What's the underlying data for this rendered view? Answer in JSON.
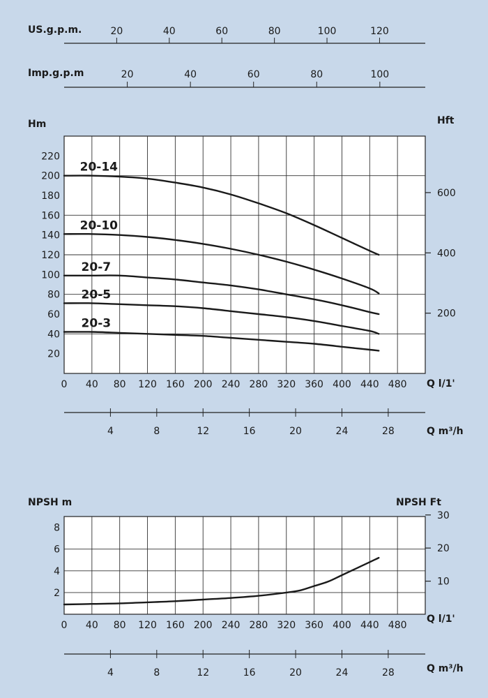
{
  "colors": {
    "background": "#c8d8ea",
    "plot_bg": "#ffffff",
    "grid": "#333333",
    "curve": "#1a1a1a"
  },
  "top_scales": {
    "us_gpm": {
      "label": "US.g.p.m.",
      "ticks": [
        "20",
        "40",
        "60",
        "80",
        "100",
        "120"
      ],
      "values": [
        20,
        40,
        60,
        80,
        100,
        120
      ]
    },
    "imp_gpm": {
      "label": "Imp.g.p.m",
      "ticks": [
        "20",
        "40",
        "60",
        "80",
        "100"
      ],
      "values": [
        20,
        40,
        60,
        80,
        100
      ]
    }
  },
  "chart_data": [
    {
      "type": "line",
      "title": "",
      "ylabel": "Hm",
      "ylabel_right": "Hft",
      "xlabel": "Q l/1'",
      "xlabel_secondary": "Q m³/h",
      "x_ticks": [
        "0",
        "40",
        "80",
        "120",
        "160",
        "200",
        "240",
        "280",
        "320",
        "360",
        "400",
        "440",
        "480"
      ],
      "x_ticks_secondary": [
        "4",
        "8",
        "12",
        "16",
        "20",
        "24",
        "28"
      ],
      "y_ticks": [
        "20",
        "40",
        "60",
        "80",
        "100",
        "120",
        "140",
        "160",
        "180",
        "200",
        "220"
      ],
      "y_ticks_right": [
        "200",
        "400",
        "600"
      ],
      "xlim": [
        0,
        520
      ],
      "ylim": [
        0,
        240
      ],
      "grid": true,
      "x": [
        0,
        40,
        80,
        120,
        160,
        200,
        240,
        280,
        320,
        360,
        400,
        440,
        453
      ],
      "series": [
        {
          "name": "20-14",
          "values": [
            200,
            200,
            199,
            197,
            193,
            188,
            181,
            172,
            162,
            150,
            137,
            124,
            120
          ]
        },
        {
          "name": "20-10",
          "values": [
            141,
            141,
            140,
            138,
            135,
            131,
            126,
            120,
            113,
            105,
            96,
            86,
            81
          ]
        },
        {
          "name": "20-7",
          "values": [
            99,
            99,
            99,
            97,
            95,
            92,
            89,
            85,
            80,
            75,
            69,
            62,
            60
          ]
        },
        {
          "name": "20-5",
          "values": [
            71,
            71,
            70,
            69,
            68,
            66,
            63,
            60,
            57,
            53,
            48,
            43,
            40
          ]
        },
        {
          "name": "20-3",
          "values": [
            42,
            42,
            41,
            40,
            39,
            38,
            36,
            34,
            32,
            30,
            27,
            24,
            23
          ]
        }
      ]
    },
    {
      "type": "line",
      "title": "",
      "ylabel": "NPSH m",
      "ylabel_right": "NPSH  Ft",
      "xlabel": "Q l/1'",
      "xlabel_secondary": "Q m³/h",
      "x_ticks": [
        "0",
        "40",
        "80",
        "120",
        "160",
        "200",
        "240",
        "280",
        "320",
        "360",
        "400",
        "440",
        "480"
      ],
      "x_ticks_secondary": [
        "4",
        "8",
        "12",
        "16",
        "20",
        "24",
        "28"
      ],
      "y_ticks": [
        "2",
        "4",
        "6",
        "8"
      ],
      "y_ticks_right": [
        "10",
        "20",
        "30"
      ],
      "xlim": [
        0,
        520
      ],
      "ylim": [
        0,
        9
      ],
      "grid": true,
      "x": [
        0,
        40,
        80,
        120,
        160,
        200,
        240,
        280,
        320,
        340,
        360,
        380,
        400,
        420,
        440,
        453
      ],
      "series": [
        {
          "name": "",
          "values": [
            0.9,
            0.95,
            1.0,
            1.1,
            1.2,
            1.35,
            1.5,
            1.7,
            2.0,
            2.2,
            2.6,
            3.0,
            3.6,
            4.2,
            4.8,
            5.2
          ]
        }
      ]
    }
  ]
}
